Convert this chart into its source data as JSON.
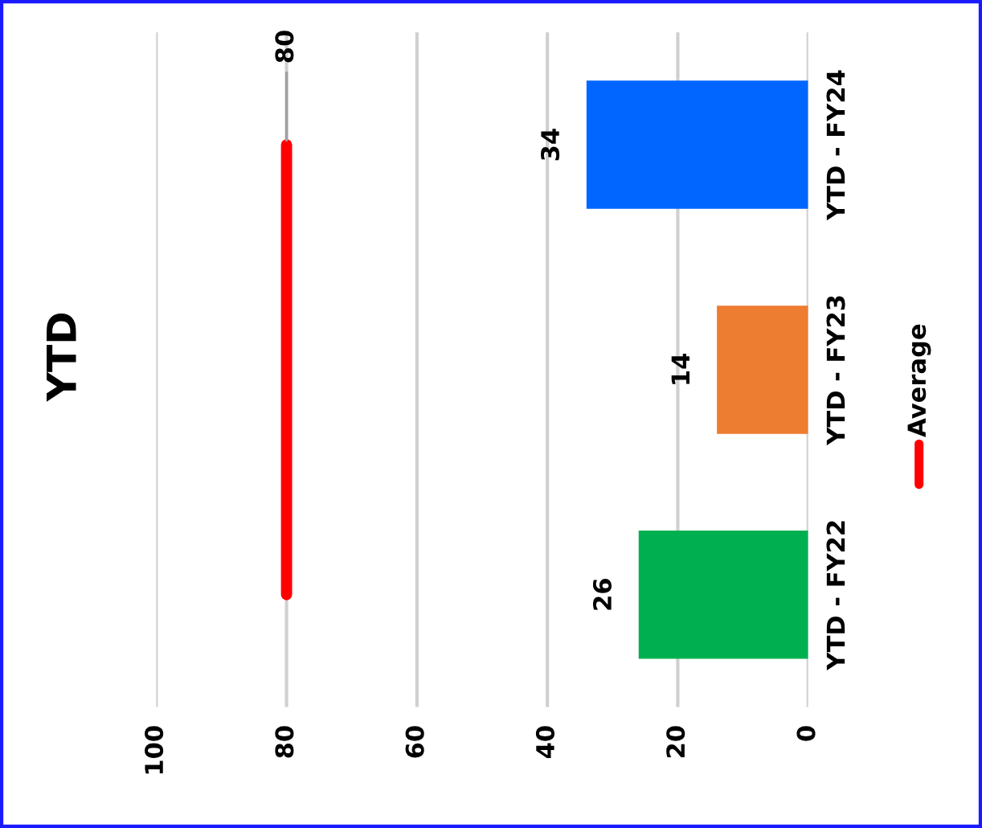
{
  "chart_data": {
    "type": "bar",
    "orientation": "horizontal",
    "title": "YTD",
    "categories": [
      "YTD - FY24",
      "YTD - FY23",
      "YTD - FY22"
    ],
    "series": [
      {
        "colors": [
          "#0066ff",
          "#ed7d31",
          "#00b050"
        ],
        "values": [
          34,
          14,
          26
        ],
        "data_labels": true
      },
      {
        "type": "line",
        "name": "Average",
        "color": "#ff0000",
        "values": [
          80,
          80,
          80
        ],
        "value_labels": [
          "80",
          null,
          null
        ]
      }
    ],
    "xlim": [
      100,
      0
    ],
    "xticks": [
      0,
      20,
      40,
      60,
      80,
      100
    ],
    "grid": "x",
    "legend": "right"
  }
}
